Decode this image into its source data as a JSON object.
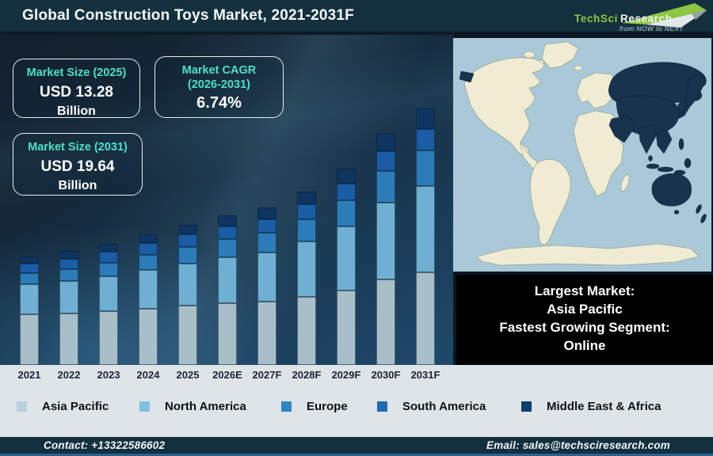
{
  "title": "Global Construction Toys Market, 2021-2031F",
  "logo": {
    "brand": "TechSci",
    "brand2": "Research",
    "tagline": "from NOW to NEXT"
  },
  "theme": {
    "accent": "#4ce0c7",
    "header-bg": "#14303f",
    "strip-bg": "#dee4e8",
    "footer-line": "#2a628f",
    "logo-green": "#8dc63f",
    "ocean": "#a9c9d8",
    "land": "#f0ecd3",
    "highlight": "#17334e"
  },
  "stat_boxes": [
    {
      "heading": "Market Size (2025)",
      "value": "USD 13.28",
      "unit": "Billion"
    },
    {
      "heading": "Market CAGR",
      "subheading": "(2026-2031)",
      "value": "6.74%"
    },
    {
      "heading": "Market Size (2031)",
      "value": "USD 19.64",
      "unit": "Billion"
    }
  ],
  "chart_data": {
    "type": "bar",
    "stacked": true,
    "title": "Global Construction Toys Market, 2021-2031F",
    "xlabel": "",
    "ylabel": "",
    "axis_values_shown": false,
    "legend_position": "bottom",
    "categories": [
      "2021",
      "2022",
      "2023",
      "2024",
      "2025",
      "2026E",
      "2027F",
      "2028F",
      "2029F",
      "2030F",
      "2031F"
    ],
    "series": [
      {
        "name": "Asia Pacific",
        "color": "#a8bfca",
        "values": [
          64,
          65,
          68,
          71,
          75,
          78,
          80,
          86,
          94,
          108,
          117
        ]
      },
      {
        "name": "North America",
        "color": "#6fb0d2",
        "values": [
          38,
          41,
          44,
          49,
          53,
          58,
          62,
          70,
          81,
          97,
          109
        ]
      },
      {
        "name": "Europe",
        "color": "#2c7cb7",
        "values": [
          14,
          15,
          17,
          19,
          21,
          23,
          25,
          28,
          33,
          40,
          45
        ]
      },
      {
        "name": "South America",
        "color": "#1b5da5",
        "values": [
          12,
          13,
          14,
          15,
          16,
          16,
          17,
          19,
          21,
          25,
          27
        ]
      },
      {
        "name": "Middle East & Africa",
        "color": "#0d3560",
        "values": [
          9,
          10,
          10,
          11,
          12,
          14,
          15,
          16,
          19,
          23,
          26
        ]
      }
    ],
    "units_note": "bar segment values are relative heights in px; y-axis not labeled in source",
    "known_points": {
      "market_size_2025_usd_billion": 13.28,
      "market_size_2031_usd_billion": 19.64,
      "cagr_2026_2031_percent": 6.74
    }
  },
  "legend": [
    {
      "label": "Asia Pacific",
      "color": "#b8cfdc"
    },
    {
      "label": "North America",
      "color": "#80c3e1"
    },
    {
      "label": "Europe",
      "color": "#2e86c3"
    },
    {
      "label": "South America",
      "color": "#1f6cb4"
    },
    {
      "label": "Middle East & Africa",
      "color": "#0e3d71"
    }
  ],
  "map": {
    "highlighted_region": "Asia Pacific"
  },
  "callout": {
    "line1": "Largest Market:",
    "line2": "Asia Pacific",
    "line3": "Fastest Growing Segment:",
    "line4": "Online"
  },
  "footer": {
    "contact": "Contact: +13322586602",
    "email": "Email: sales@techsciresearch.com"
  }
}
